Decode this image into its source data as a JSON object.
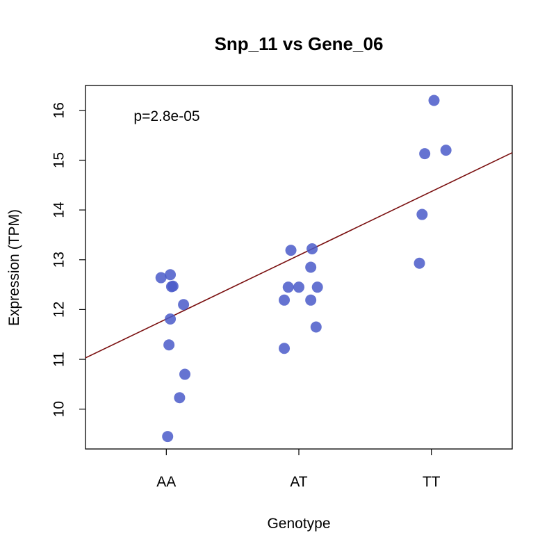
{
  "chart_data": {
    "type": "scatter",
    "title": "Snp_11 vs Gene_06",
    "xlabel": "Genotype",
    "ylabel": "Expression (TPM)",
    "annotation": "p=2.8e-05",
    "categories": [
      "AA",
      "AT",
      "TT"
    ],
    "xlim": [
      0.39,
      3.61
    ],
    "ylim": [
      9.2,
      16.5
    ],
    "yticks": [
      10,
      11,
      12,
      13,
      14,
      15,
      16
    ],
    "point_color": "#4a5bc9",
    "line_color": "#7a0f0f",
    "regression": {
      "intercept": 10.53,
      "slope": 1.28
    },
    "points": [
      {
        "x": 0.96,
        "y": 12.64
      },
      {
        "x": 1.03,
        "y": 12.7
      },
      {
        "x": 1.05,
        "y": 12.47
      },
      {
        "x": 1.04,
        "y": 12.46
      },
      {
        "x": 1.13,
        "y": 12.1
      },
      {
        "x": 1.03,
        "y": 11.81
      },
      {
        "x": 1.02,
        "y": 11.29
      },
      {
        "x": 1.14,
        "y": 10.7
      },
      {
        "x": 1.1,
        "y": 10.23
      },
      {
        "x": 1.01,
        "y": 9.45
      },
      {
        "x": 1.94,
        "y": 13.19
      },
      {
        "x": 2.1,
        "y": 13.22
      },
      {
        "x": 2.09,
        "y": 12.85
      },
      {
        "x": 1.92,
        "y": 12.45
      },
      {
        "x": 2.0,
        "y": 12.45
      },
      {
        "x": 2.14,
        "y": 12.45
      },
      {
        "x": 1.89,
        "y": 12.19
      },
      {
        "x": 2.09,
        "y": 12.19
      },
      {
        "x": 2.13,
        "y": 11.65
      },
      {
        "x": 1.89,
        "y": 11.22
      },
      {
        "x": 3.02,
        "y": 16.2
      },
      {
        "x": 3.11,
        "y": 15.2
      },
      {
        "x": 2.95,
        "y": 15.13
      },
      {
        "x": 2.93,
        "y": 13.91
      },
      {
        "x": 2.91,
        "y": 12.93
      }
    ]
  }
}
